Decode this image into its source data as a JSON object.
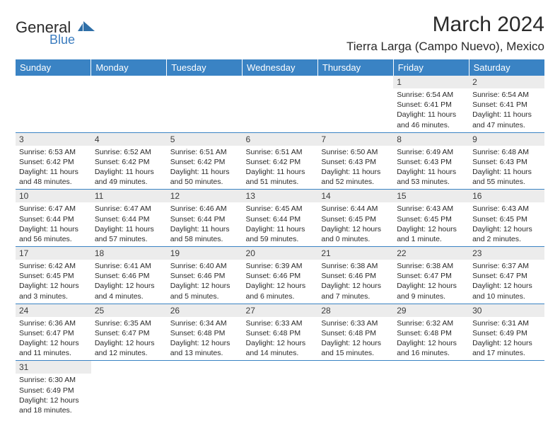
{
  "brand": {
    "name1": "General",
    "name2": "Blue",
    "shape_fill": "#2f6fa8"
  },
  "title": "March 2024",
  "location": "Tierra Larga (Campo Nuevo), Mexico",
  "colors": {
    "header_bg": "#3a83c4",
    "header_text": "#ffffff",
    "daynum_bg": "#ececec",
    "border": "#3a83c4",
    "text": "#2a2a2a"
  },
  "day_headers": [
    "Sunday",
    "Monday",
    "Tuesday",
    "Wednesday",
    "Thursday",
    "Friday",
    "Saturday"
  ],
  "weeks": [
    [
      null,
      null,
      null,
      null,
      null,
      {
        "n": "1",
        "sr": "6:54 AM",
        "ss": "6:41 PM",
        "dl": "11 hours and 46 minutes."
      },
      {
        "n": "2",
        "sr": "6:54 AM",
        "ss": "6:41 PM",
        "dl": "11 hours and 47 minutes."
      }
    ],
    [
      {
        "n": "3",
        "sr": "6:53 AM",
        "ss": "6:42 PM",
        "dl": "11 hours and 48 minutes."
      },
      {
        "n": "4",
        "sr": "6:52 AM",
        "ss": "6:42 PM",
        "dl": "11 hours and 49 minutes."
      },
      {
        "n": "5",
        "sr": "6:51 AM",
        "ss": "6:42 PM",
        "dl": "11 hours and 50 minutes."
      },
      {
        "n": "6",
        "sr": "6:51 AM",
        "ss": "6:42 PM",
        "dl": "11 hours and 51 minutes."
      },
      {
        "n": "7",
        "sr": "6:50 AM",
        "ss": "6:43 PM",
        "dl": "11 hours and 52 minutes."
      },
      {
        "n": "8",
        "sr": "6:49 AM",
        "ss": "6:43 PM",
        "dl": "11 hours and 53 minutes."
      },
      {
        "n": "9",
        "sr": "6:48 AM",
        "ss": "6:43 PM",
        "dl": "11 hours and 55 minutes."
      }
    ],
    [
      {
        "n": "10",
        "sr": "6:47 AM",
        "ss": "6:44 PM",
        "dl": "11 hours and 56 minutes."
      },
      {
        "n": "11",
        "sr": "6:47 AM",
        "ss": "6:44 PM",
        "dl": "11 hours and 57 minutes."
      },
      {
        "n": "12",
        "sr": "6:46 AM",
        "ss": "6:44 PM",
        "dl": "11 hours and 58 minutes."
      },
      {
        "n": "13",
        "sr": "6:45 AM",
        "ss": "6:44 PM",
        "dl": "11 hours and 59 minutes."
      },
      {
        "n": "14",
        "sr": "6:44 AM",
        "ss": "6:45 PM",
        "dl": "12 hours and 0 minutes."
      },
      {
        "n": "15",
        "sr": "6:43 AM",
        "ss": "6:45 PM",
        "dl": "12 hours and 1 minute."
      },
      {
        "n": "16",
        "sr": "6:43 AM",
        "ss": "6:45 PM",
        "dl": "12 hours and 2 minutes."
      }
    ],
    [
      {
        "n": "17",
        "sr": "6:42 AM",
        "ss": "6:45 PM",
        "dl": "12 hours and 3 minutes."
      },
      {
        "n": "18",
        "sr": "6:41 AM",
        "ss": "6:46 PM",
        "dl": "12 hours and 4 minutes."
      },
      {
        "n": "19",
        "sr": "6:40 AM",
        "ss": "6:46 PM",
        "dl": "12 hours and 5 minutes."
      },
      {
        "n": "20",
        "sr": "6:39 AM",
        "ss": "6:46 PM",
        "dl": "12 hours and 6 minutes."
      },
      {
        "n": "21",
        "sr": "6:38 AM",
        "ss": "6:46 PM",
        "dl": "12 hours and 7 minutes."
      },
      {
        "n": "22",
        "sr": "6:38 AM",
        "ss": "6:47 PM",
        "dl": "12 hours and 9 minutes."
      },
      {
        "n": "23",
        "sr": "6:37 AM",
        "ss": "6:47 PM",
        "dl": "12 hours and 10 minutes."
      }
    ],
    [
      {
        "n": "24",
        "sr": "6:36 AM",
        "ss": "6:47 PM",
        "dl": "12 hours and 11 minutes."
      },
      {
        "n": "25",
        "sr": "6:35 AM",
        "ss": "6:47 PM",
        "dl": "12 hours and 12 minutes."
      },
      {
        "n": "26",
        "sr": "6:34 AM",
        "ss": "6:48 PM",
        "dl": "12 hours and 13 minutes."
      },
      {
        "n": "27",
        "sr": "6:33 AM",
        "ss": "6:48 PM",
        "dl": "12 hours and 14 minutes."
      },
      {
        "n": "28",
        "sr": "6:33 AM",
        "ss": "6:48 PM",
        "dl": "12 hours and 15 minutes."
      },
      {
        "n": "29",
        "sr": "6:32 AM",
        "ss": "6:48 PM",
        "dl": "12 hours and 16 minutes."
      },
      {
        "n": "30",
        "sr": "6:31 AM",
        "ss": "6:49 PM",
        "dl": "12 hours and 17 minutes."
      }
    ],
    [
      {
        "n": "31",
        "sr": "6:30 AM",
        "ss": "6:49 PM",
        "dl": "12 hours and 18 minutes."
      },
      null,
      null,
      null,
      null,
      null,
      null
    ]
  ],
  "labels": {
    "sunrise": "Sunrise:",
    "sunset": "Sunset:",
    "daylight": "Daylight:"
  }
}
